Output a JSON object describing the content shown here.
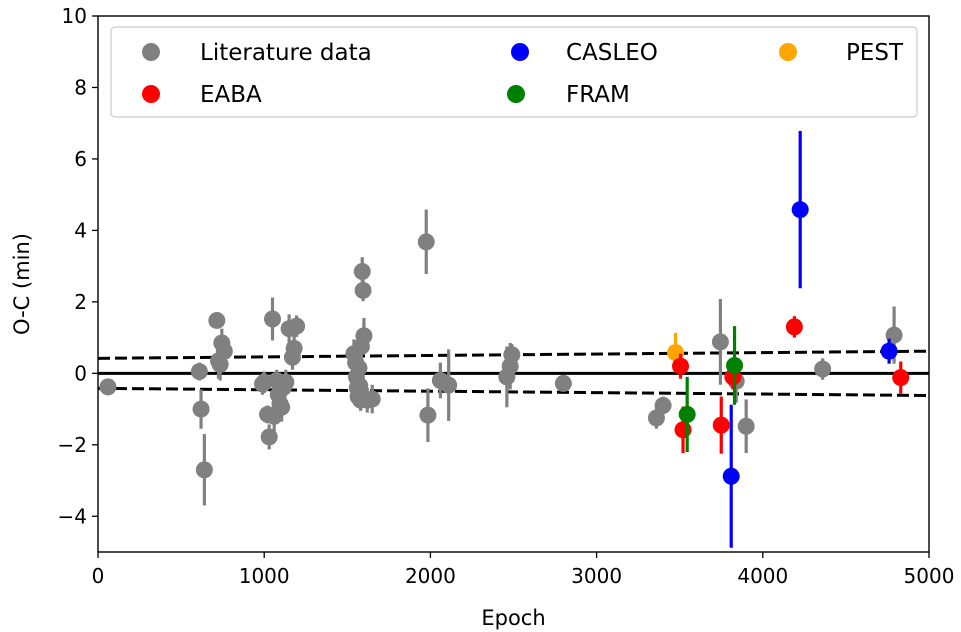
{
  "chart_data": {
    "type": "scatter",
    "xlabel": "Epoch",
    "ylabel": "O-C (min)",
    "xlim": [
      0,
      5000
    ],
    "ylim": [
      -5,
      10
    ],
    "xticks": [
      0,
      1000,
      2000,
      3000,
      4000,
      5000
    ],
    "yticks": [
      -4,
      -2,
      0,
      2,
      4,
      6,
      8,
      10
    ],
    "ytick_labels": [
      "−4",
      "−2",
      "0",
      "2",
      "4",
      "6",
      "8",
      "10"
    ],
    "grid": false,
    "legend_position": "top",
    "reference_lines": [
      {
        "style": "solid",
        "x": [
          0,
          5000
        ],
        "y": [
          0,
          0
        ]
      },
      {
        "style": "dashed",
        "x": [
          0,
          5000
        ],
        "y": [
          0.42,
          0.62
        ]
      },
      {
        "style": "dashed",
        "x": [
          0,
          5000
        ],
        "y": [
          -0.42,
          -0.62
        ]
      }
    ],
    "series": [
      {
        "name": "Literature data",
        "color": "#808080",
        "points": [
          [
            60,
            -0.38,
            0.1
          ],
          [
            610,
            0.05,
            0.25
          ],
          [
            620,
            -1.0,
            0.55
          ],
          [
            640,
            -2.7,
            1.0
          ],
          [
            715,
            1.48,
            0.1
          ],
          [
            725,
            0.35,
            0.5
          ],
          [
            735,
            0.25,
            0.45
          ],
          [
            745,
            0.85,
            0.4
          ],
          [
            760,
            0.62,
            0.45
          ],
          [
            990,
            -0.3,
            0.3
          ],
          [
            1000,
            -0.25,
            0.3
          ],
          [
            1020,
            -1.15,
            0.25
          ],
          [
            1030,
            -1.78,
            0.35
          ],
          [
            1050,
            1.52,
            0.6
          ],
          [
            1060,
            -1.2,
            0.45
          ],
          [
            1075,
            -0.2,
            0.3
          ],
          [
            1085,
            -0.6,
            0.35
          ],
          [
            1095,
            -0.85,
            0.4
          ],
          [
            1105,
            -0.95,
            0.4
          ],
          [
            1115,
            -0.4,
            0.3
          ],
          [
            1130,
            -0.25,
            0.35
          ],
          [
            1150,
            1.25,
            0.4
          ],
          [
            1170,
            0.45,
            0.35
          ],
          [
            1180,
            0.7,
            0.4
          ],
          [
            1195,
            1.32,
            0.3
          ],
          [
            1540,
            0.55,
            0.4
          ],
          [
            1550,
            0.3,
            0.4
          ],
          [
            1555,
            -0.1,
            0.35
          ],
          [
            1560,
            -0.4,
            0.35
          ],
          [
            1565,
            -0.65,
            0.3
          ],
          [
            1570,
            0.15,
            0.45
          ],
          [
            1575,
            -0.35,
            0.4
          ],
          [
            1580,
            -0.75,
            0.3
          ],
          [
            1585,
            0.75,
            0.4
          ],
          [
            1590,
            2.85,
            0.4
          ],
          [
            1595,
            2.32,
            0.3
          ],
          [
            1600,
            1.05,
            0.5
          ],
          [
            1620,
            -0.75,
            0.35
          ],
          [
            1650,
            -0.72,
            0.4
          ],
          [
            1975,
            3.68,
            0.9
          ],
          [
            1985,
            -1.17,
            0.75
          ],
          [
            2060,
            -0.2,
            0.5
          ],
          [
            2110,
            -0.33,
            1.0
          ],
          [
            2460,
            -0.1,
            0.85
          ],
          [
            2480,
            0.2,
            0.65
          ],
          [
            2490,
            0.52,
            0.3
          ],
          [
            2800,
            -0.28,
            0.2
          ],
          [
            3360,
            -1.25,
            0.3
          ],
          [
            3400,
            -0.9,
            0.25
          ],
          [
            3745,
            0.88,
            1.2
          ],
          [
            3840,
            -0.22,
            0.6
          ],
          [
            3900,
            -1.48,
            0.75
          ],
          [
            4360,
            0.12,
            0.3
          ],
          [
            4790,
            1.07,
            0.8
          ]
        ]
      },
      {
        "name": "CASLEO",
        "color": "#0000ff",
        "points": [
          [
            3810,
            -2.88,
            2.0
          ],
          [
            4225,
            4.58,
            2.2
          ],
          [
            4760,
            0.62,
            0.35
          ]
        ]
      },
      {
        "name": "PEST",
        "color": "#ffa500",
        "points": [
          [
            3475,
            0.58,
            0.55
          ]
        ]
      },
      {
        "name": "EABA",
        "color": "#ff0000",
        "points": [
          [
            3505,
            0.2,
            0.35
          ],
          [
            3520,
            -1.58,
            0.65
          ],
          [
            3750,
            -1.45,
            0.8
          ],
          [
            3820,
            -0.1,
            0.35
          ],
          [
            4190,
            1.3,
            0.3
          ],
          [
            4830,
            -0.12,
            0.45
          ]
        ]
      },
      {
        "name": "FRAM",
        "color": "#008000",
        "points": [
          [
            3545,
            -1.15,
            1.05
          ],
          [
            3830,
            0.22,
            1.1
          ]
        ]
      }
    ],
    "legend_entries": [
      {
        "label": "Literature data",
        "color": "#808080"
      },
      {
        "label": "CASLEO",
        "color": "#0000ff"
      },
      {
        "label": "PEST",
        "color": "#ffa500"
      },
      {
        "label": "EABA",
        "color": "#ff0000"
      },
      {
        "label": "FRAM",
        "color": "#008000"
      }
    ]
  }
}
